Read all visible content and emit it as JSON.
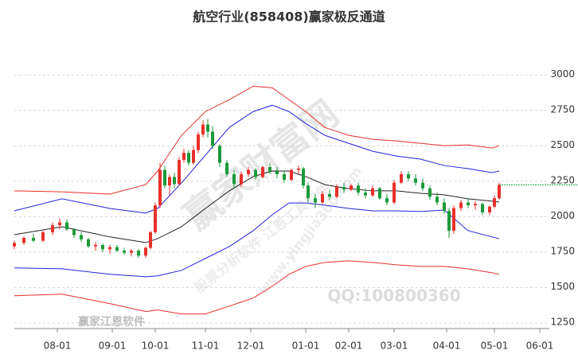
{
  "chart_data": {
    "type": "candlestick",
    "title": "航空行业(858408)赢家极反通道",
    "xlim": [
      0,
      224
    ],
    "xticks": [
      {
        "value": 18,
        "label": "08-01"
      },
      {
        "value": 41,
        "label": "09-01"
      },
      {
        "value": 59,
        "label": "10-01"
      },
      {
        "value": 80,
        "label": "11-01"
      },
      {
        "value": 99,
        "label": "12-01"
      },
      {
        "value": 122,
        "label": "01-01"
      },
      {
        "value": 140,
        "label": "02-01"
      },
      {
        "value": 159,
        "label": "03-01"
      },
      {
        "value": 181,
        "label": "04-01"
      },
      {
        "value": 201,
        "label": "05-01"
      },
      {
        "value": 220,
        "label": "06-01"
      }
    ],
    "ylim": [
      1210,
      3260
    ],
    "yticks": [
      1250,
      1500,
      1750,
      2000,
      2250,
      2500,
      2750,
      3000
    ],
    "grid": true,
    "up_color": "#e8302a",
    "down_color": "#1a9a3a",
    "candles": {
      "x": [
        0,
        4,
        8,
        12,
        16,
        19,
        22,
        25,
        28,
        31,
        34,
        37,
        40,
        43,
        46,
        49,
        52,
        55,
        57,
        59,
        61,
        63,
        65,
        67,
        69,
        71,
        73,
        75,
        77,
        79,
        81,
        83,
        86,
        89,
        92,
        95,
        98,
        101,
        104,
        107,
        110,
        113,
        116,
        119,
        121,
        123,
        126,
        129,
        132,
        135,
        138,
        141,
        144,
        147,
        150,
        153,
        156,
        159,
        162,
        165,
        168,
        171,
        174,
        177,
        180,
        182,
        184,
        187,
        190,
        193,
        196,
        199,
        201,
        203
      ],
      "open": [
        1790,
        1815,
        1850,
        1830,
        1890,
        1940,
        1960,
        1910,
        1870,
        1840,
        1790,
        1800,
        1770,
        1785,
        1760,
        1745,
        1760,
        1725,
        1780,
        1890,
        2080,
        2330,
        2220,
        2280,
        2230,
        2400,
        2450,
        2380,
        2470,
        2580,
        2650,
        2600,
        2500,
        2380,
        2300,
        2230,
        2300,
        2330,
        2280,
        2350,
        2320,
        2300,
        2260,
        2330,
        2340,
        2220,
        2130,
        2100,
        2160,
        2140,
        2210,
        2190,
        2220,
        2170,
        2150,
        2200,
        2130,
        2100,
        2240,
        2300,
        2270,
        2240,
        2200,
        2140,
        2100,
        2040,
        1900,
        2060,
        2100,
        2080,
        2090,
        2030,
        2070,
        2130
      ],
      "high": [
        1830,
        1860,
        1880,
        1900,
        1960,
        1990,
        1980,
        1920,
        1890,
        1850,
        1820,
        1810,
        1800,
        1800,
        1780,
        1770,
        1770,
        1790,
        1900,
        2100,
        2380,
        2360,
        2300,
        2310,
        2420,
        2480,
        2470,
        2500,
        2600,
        2680,
        2690,
        2640,
        2510,
        2400,
        2330,
        2320,
        2350,
        2340,
        2360,
        2380,
        2350,
        2320,
        2340,
        2360,
        2350,
        2240,
        2160,
        2180,
        2190,
        2230,
        2240,
        2230,
        2240,
        2200,
        2220,
        2210,
        2160,
        2260,
        2320,
        2320,
        2300,
        2270,
        2220,
        2170,
        2130,
        2060,
        2080,
        2120,
        2130,
        2110,
        2100,
        2080,
        2150,
        2240
      ],
      "low": [
        1770,
        1800,
        1820,
        1820,
        1870,
        1910,
        1900,
        1850,
        1820,
        1780,
        1760,
        1750,
        1740,
        1750,
        1730,
        1720,
        1710,
        1710,
        1770,
        1880,
        2060,
        2200,
        2150,
        2200,
        2220,
        2380,
        2360,
        2370,
        2450,
        2560,
        2560,
        2480,
        2350,
        2280,
        2200,
        2210,
        2280,
        2260,
        2270,
        2300,
        2270,
        2240,
        2250,
        2300,
        2200,
        2100,
        2060,
        2090,
        2120,
        2130,
        2170,
        2180,
        2150,
        2130,
        2140,
        2120,
        2080,
        2090,
        2230,
        2250,
        2220,
        2180,
        2120,
        2080,
        2020,
        1850,
        1880,
        2040,
        2060,
        2050,
        2010,
        2010,
        2060,
        2120
      ],
      "close": [
        1815,
        1850,
        1830,
        1890,
        1940,
        1960,
        1910,
        1870,
        1840,
        1790,
        1800,
        1770,
        1785,
        1760,
        1745,
        1760,
        1725,
        1780,
        1890,
        2080,
        2330,
        2220,
        2280,
        2230,
        2400,
        2450,
        2380,
        2470,
        2580,
        2650,
        2600,
        2500,
        2380,
        2300,
        2230,
        2300,
        2330,
        2280,
        2350,
        2320,
        2300,
        2260,
        2330,
        2340,
        2220,
        2130,
        2100,
        2160,
        2140,
        2210,
        2190,
        2220,
        2170,
        2150,
        2200,
        2130,
        2100,
        2240,
        2300,
        2270,
        2240,
        2200,
        2140,
        2100,
        2040,
        1900,
        2060,
        2100,
        2080,
        2090,
        2030,
        2070,
        2130,
        2225
      ]
    },
    "line_x": [
      0,
      20,
      40,
      55,
      60,
      70,
      80,
      90,
      100,
      108,
      115,
      122,
      130,
      140,
      150,
      160,
      170,
      180,
      190,
      200,
      203
    ],
    "lines": [
      {
        "color": "#e8302a",
        "values": [
          2182,
          2175,
          2159,
          2226,
          2322,
          2574,
          2742,
          2826,
          2921,
          2910,
          2826,
          2742,
          2630,
          2574,
          2546,
          2535,
          2518,
          2501,
          2507,
          2484,
          2501
        ]
      },
      {
        "color": "#2323dd",
        "values": [
          2041,
          2126,
          2058,
          2025,
          2058,
          2238,
          2434,
          2630,
          2742,
          2787,
          2742,
          2658,
          2574,
          2518,
          2462,
          2428,
          2406,
          2361,
          2339,
          2311,
          2322
        ]
      },
      {
        "color": "#222222",
        "values": [
          1873,
          1929,
          1857,
          1817,
          1845,
          1929,
          2058,
          2182,
          2283,
          2322,
          2322,
          2283,
          2226,
          2198,
          2182,
          2182,
          2165,
          2154,
          2126,
          2109,
          2104
        ]
      },
      {
        "color": "#2323dd",
        "values": [
          1638,
          1632,
          1593,
          1576,
          1582,
          1621,
          1705,
          1789,
          1901,
          2013,
          2097,
          2097,
          2081,
          2058,
          2041,
          2041,
          2036,
          2047,
          1901,
          1857,
          1845
        ]
      },
      {
        "color": "#e8302a",
        "values": [
          1442,
          1453,
          1386,
          1330,
          1341,
          1313,
          1313,
          1369,
          1425,
          1509,
          1593,
          1649,
          1677,
          1688,
          1677,
          1660,
          1649,
          1649,
          1632,
          1604,
          1593
        ]
      }
    ],
    "last_price": 2225,
    "last_price_color": "#1a9a3a",
    "watermarks": [
      "赢家财富网",
      "股票分析软件 江恩工具软件",
      "www.yingjia360.com",
      "QQ:100800360",
      "赢家江恩软件"
    ]
  }
}
